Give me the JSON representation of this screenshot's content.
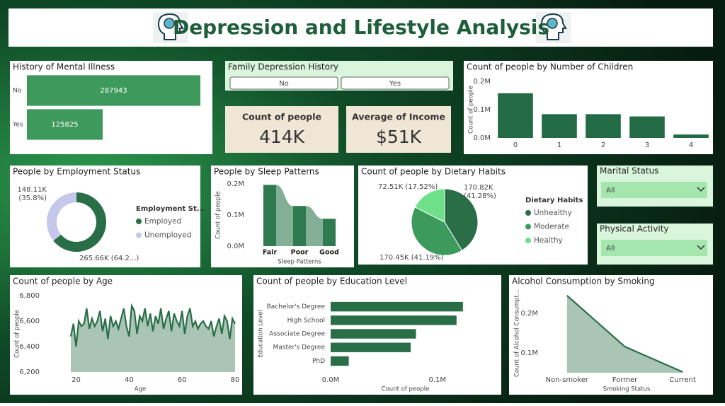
{
  "header": {
    "title": "Depression and Lifestyle Analysis"
  },
  "slicers": [
    {
      "title": "Family Depression History",
      "options": [
        "No",
        "Yes"
      ]
    },
    {
      "title": "Marital Status",
      "selected": "All"
    },
    {
      "title": "Physical Activity",
      "selected": "All"
    }
  ],
  "cards": [
    {
      "label": "Count of people",
      "value": "414K"
    },
    {
      "label": "Average of Income",
      "value": "$51K"
    }
  ],
  "chart_data": [
    {
      "type": "bar",
      "orientation": "horizontal",
      "title": "History of Mental Illness",
      "categories": [
        "No",
        "Yes"
      ],
      "values": [
        287943,
        125825
      ],
      "color": "#3e9a5c",
      "data_labels": true
    },
    {
      "type": "bar",
      "title": "Count of people by Number of Children",
      "categories": [
        "0",
        "1",
        "2",
        "3",
        "4"
      ],
      "values": [
        158000,
        84000,
        84000,
        76000,
        12000
      ],
      "color": "#236b45",
      "ylim": [
        0,
        200000
      ],
      "yticks": [
        {
          "value": 0,
          "label": "0.0M"
        },
        {
          "value": 100000,
          "label": "0.1M"
        },
        {
          "value": 200000,
          "label": "0.2M"
        }
      ],
      "y_label": "Count of people"
    },
    {
      "type": "donut",
      "title": "People by Employment Status",
      "categories": [
        "Employed",
        "Unemployed"
      ],
      "values": [
        265660,
        148110
      ],
      "value_labels": [
        "265.66K (64.2...)",
        "148.11K (35.8%)"
      ],
      "colors": [
        "#2a6e48",
        "#c5c8ea"
      ],
      "legend_title": "Employment St..."
    },
    {
      "type": "ribbon",
      "title": "People by Sleep Patterns",
      "categories": [
        "Fair",
        "Poor",
        "Good"
      ],
      "values": [
        197000,
        129000,
        88000
      ],
      "color": "#2f7a4f",
      "ylim": [
        0,
        200000
      ],
      "yticks": [
        {
          "value": 0,
          "label": "0.0M"
        },
        {
          "value": 100000,
          "label": "0.1M"
        },
        {
          "value": 200000,
          "label": "0.2M"
        }
      ],
      "x_label": "Sleep Patterns",
      "y_label": "Count of people"
    },
    {
      "type": "pie",
      "title": "Count of people by Dietary Habits",
      "categories": [
        "Unhealthy",
        "Moderate",
        "Healthy"
      ],
      "values": [
        170820,
        170450,
        72510
      ],
      "value_labels": [
        "170.82K (41.28%)",
        "170.45K (41.19%)",
        "72.51K (17.52%)"
      ],
      "colors": [
        "#2a6e48",
        "#3c9a5c",
        "#6ee08a"
      ],
      "legend_title": "Dietary Habits"
    },
    {
      "type": "area",
      "title": "Count of people by Age",
      "x": [
        18,
        19,
        20,
        21,
        22,
        23,
        24,
        25,
        26,
        27,
        28,
        29,
        30,
        31,
        32,
        33,
        34,
        35,
        36,
        37,
        38,
        39,
        40,
        41,
        42,
        43,
        44,
        45,
        46,
        47,
        48,
        49,
        50,
        51,
        52,
        53,
        54,
        55,
        56,
        57,
        58,
        59,
        60,
        61,
        62,
        63,
        64,
        65,
        66,
        67,
        68,
        69,
        70,
        71,
        72,
        73,
        74,
        75,
        76,
        77,
        78,
        79,
        80
      ],
      "values": [
        6480,
        6580,
        6400,
        6600,
        6560,
        6580,
        6700,
        6540,
        6620,
        6560,
        6600,
        6680,
        6520,
        6620,
        6460,
        6640,
        6560,
        6600,
        6540,
        6620,
        6700,
        6560,
        6480,
        6720,
        6680,
        6500,
        6640,
        6600,
        6700,
        6560,
        6660,
        6520,
        6640,
        6580,
        6700,
        6540,
        6620,
        6680,
        6520,
        6660,
        6600,
        6560,
        6680,
        6500,
        6640,
        6700,
        6560,
        6600,
        6540,
        6580,
        6600,
        6560,
        6540,
        6600,
        6480,
        6560,
        6620,
        6500,
        6640,
        6600,
        6460,
        6620,
        6580
      ],
      "color": "#2a6e48",
      "xlim": [
        18,
        80
      ],
      "xticks": [
        20,
        40,
        60,
        80
      ],
      "ylim": [
        6200,
        6800
      ],
      "yticks": [
        {
          "value": 6200,
          "label": "6,200"
        },
        {
          "value": 6400,
          "label": "6,400"
        },
        {
          "value": 6600,
          "label": "6,600"
        },
        {
          "value": 6800,
          "label": "6,800"
        }
      ],
      "x_label": "Age",
      "y_label": "Count of people"
    },
    {
      "type": "bar",
      "orientation": "horizontal",
      "title": "Count of people by Education Level",
      "categories": [
        "Bachelor's Degree",
        "High School",
        "Associate Degree",
        "Master's Degree",
        "PhD"
      ],
      "values": [
        124000,
        118000,
        80000,
        75000,
        17000
      ],
      "color": "#2a6e48",
      "xlim": [
        0,
        140000
      ],
      "xticks": [
        {
          "value": 0,
          "label": "0.0M"
        },
        {
          "value": 100000,
          "label": "0.1M"
        }
      ],
      "x_label": "Count of people",
      "y_label": "Education Level"
    },
    {
      "type": "area",
      "title": "Alcohol Consumption by Smoking",
      "categories": [
        "Non-smoker",
        "Former",
        "Current"
      ],
      "values": [
        245000,
        116000,
        52000
      ],
      "color": "#2a6e48",
      "ylim": [
        50000,
        250000
      ],
      "yticks": [
        {
          "value": 100000,
          "label": "0.1M"
        },
        {
          "value": 200000,
          "label": "0.2M"
        }
      ],
      "x_label": "Smoking Status",
      "y_label": "Count of Alcohol Consumpt..."
    }
  ]
}
